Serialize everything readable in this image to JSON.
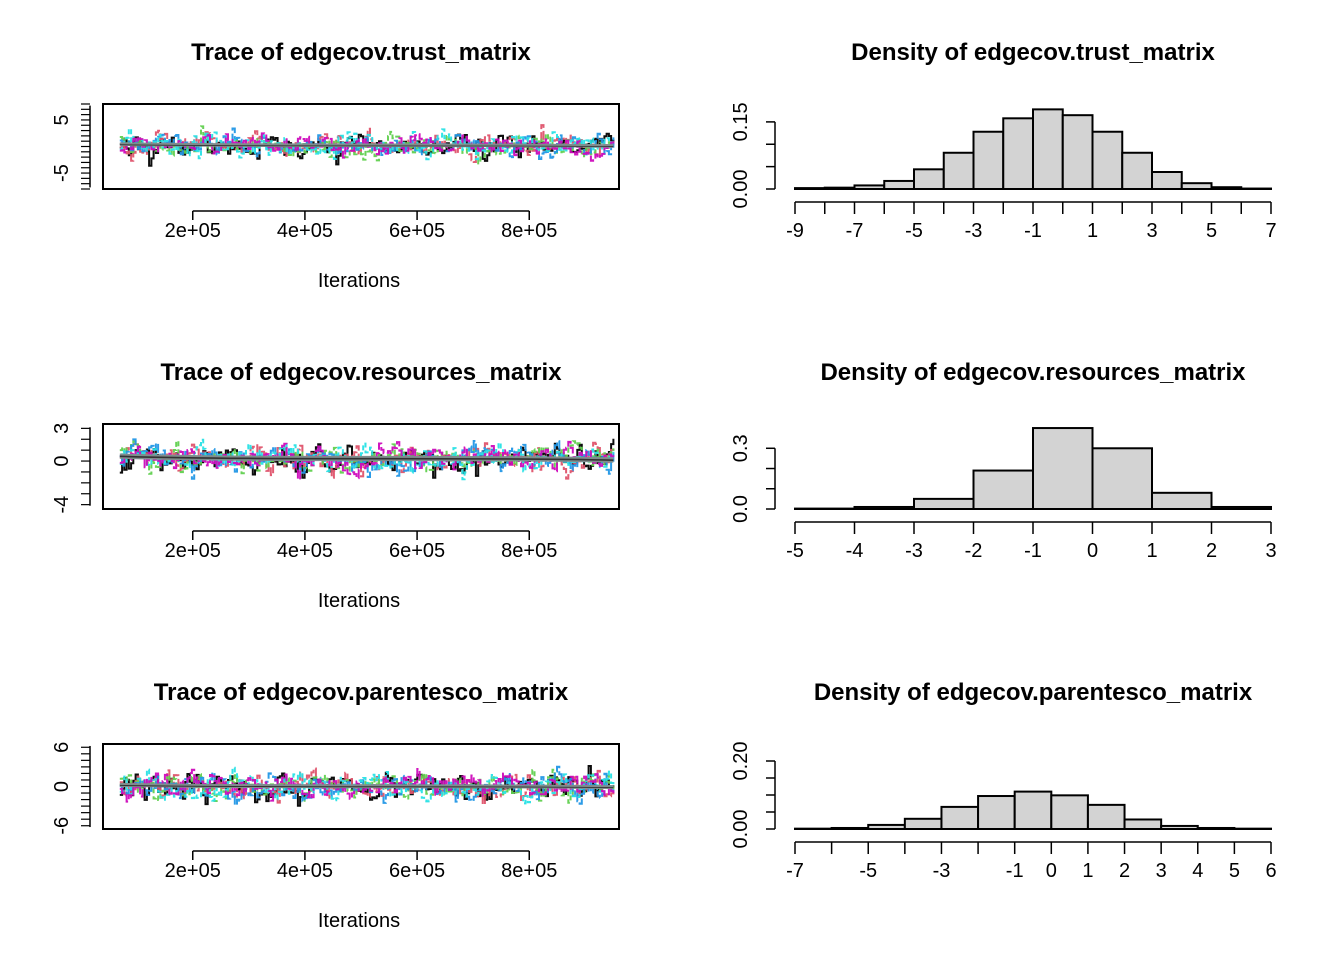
{
  "colors": {
    "series": [
      "#000000",
      "#DF536B",
      "#61D04F",
      "#2297E6",
      "#28E2E5",
      "#CD0BBC"
    ],
    "hist_fill": "#D3D3D3",
    "hist_border": "#000000",
    "smooth_line": "#7F8C8D"
  },
  "chart_data": [
    {
      "type": "line",
      "title": "Trace of edgecov.trust_matrix",
      "xlabel": "Iterations",
      "ylabel": "",
      "xlim": [
        40000,
        960000
      ],
      "ylim": [
        -8,
        8
      ],
      "x_ticks": [
        200000,
        400000,
        600000,
        800000
      ],
      "x_tick_labels": [
        "2e+05",
        "4e+05",
        "6e+05",
        "8e+05"
      ],
      "y_ticks": [
        -5,
        5
      ],
      "y_tick_labels": [
        "-5",
        "5"
      ],
      "x_range": [
        70000,
        950000
      ],
      "series_count": 6,
      "trace_sd": 2.0,
      "trace_center": 0.2
    },
    {
      "type": "bar",
      "title": "Density of edgecov.trust_matrix",
      "xlabel": "",
      "ylabel": "",
      "xlim": [
        -9,
        7
      ],
      "ylim": [
        0,
        0.19
      ],
      "bin_edges": [
        -9,
        -8,
        -7,
        -6,
        -5,
        -4,
        -3,
        -2,
        -1,
        0,
        1,
        2,
        3,
        4,
        5,
        6,
        7
      ],
      "values": [
        0.002,
        0.003,
        0.008,
        0.018,
        0.044,
        0.081,
        0.128,
        0.158,
        0.178,
        0.165,
        0.128,
        0.081,
        0.038,
        0.013,
        0.004,
        0.001
      ],
      "x_tick_labels": [
        "-9",
        "-7",
        "-5",
        "-3",
        "-1",
        "1",
        "3",
        "5",
        "7"
      ],
      "y_ticks": [
        0.0,
        0.05,
        0.1,
        0.15
      ],
      "y_tick_labels": [
        "0.00",
        "0.15"
      ]
    },
    {
      "type": "line",
      "title": "Trace of edgecov.resources_matrix",
      "xlabel": "Iterations",
      "ylabel": "",
      "xlim": [
        40000,
        960000
      ],
      "ylim": [
        -4.4,
        3.4
      ],
      "x_ticks": [
        200000,
        400000,
        600000,
        800000
      ],
      "x_tick_labels": [
        "2e+05",
        "4e+05",
        "6e+05",
        "8e+05"
      ],
      "y_ticks": [
        -4,
        0,
        3
      ],
      "y_tick_labels": [
        "-4",
        "0",
        "3"
      ],
      "x_range": [
        70000,
        950000
      ],
      "series_count": 6,
      "trace_sd": 1.1,
      "trace_center": 0.2
    },
    {
      "type": "bar",
      "title": "Density of edgecov.resources_matrix",
      "xlabel": "",
      "ylabel": "",
      "xlim": [
        -5,
        3
      ],
      "ylim": [
        0,
        0.42
      ],
      "bin_edges": [
        -5,
        -4,
        -3,
        -2,
        -1,
        0,
        1,
        2,
        3
      ],
      "values": [
        0.002,
        0.01,
        0.05,
        0.19,
        0.4,
        0.3,
        0.08,
        0.01
      ],
      "x_tick_labels": [
        "-5",
        "-4",
        "-3",
        "-2",
        "-1",
        "0",
        "1",
        "2",
        "3"
      ],
      "y_ticks": [
        0.0,
        0.1,
        0.2,
        0.3
      ],
      "y_tick_labels": [
        "0.0",
        "0.3"
      ]
    },
    {
      "type": "line",
      "title": "Trace of edgecov.parentesco_matrix",
      "xlabel": "Iterations",
      "ylabel": "",
      "xlim": [
        40000,
        960000
      ],
      "ylim": [
        -6.5,
        6.5
      ],
      "x_ticks": [
        200000,
        400000,
        600000,
        800000
      ],
      "x_tick_labels": [
        "2e+05",
        "4e+05",
        "6e+05",
        "8e+05"
      ],
      "y_ticks": [
        -6,
        0,
        6
      ],
      "y_tick_labels": [
        "-6",
        "0",
        "6"
      ],
      "x_range": [
        70000,
        950000
      ],
      "series_count": 6,
      "trace_sd": 1.9,
      "trace_center": 0.0
    },
    {
      "type": "bar",
      "title": "Density of edgecov.parentesco_matrix",
      "xlabel": "",
      "ylabel": "",
      "xlim": [
        -7,
        6
      ],
      "ylim": [
        0,
        0.25
      ],
      "bin_edges": [
        -7,
        -6,
        -5,
        -4,
        -3,
        -2,
        -1,
        0,
        1,
        2,
        3,
        4,
        5,
        6
      ],
      "values": [
        0.001,
        0.003,
        0.012,
        0.03,
        0.065,
        0.097,
        0.11,
        0.099,
        0.071,
        0.028,
        0.009,
        0.003,
        0.001
      ],
      "x_tick_labels": [
        "-7",
        "-5",
        "-3",
        "-1",
        "0",
        "1",
        "2",
        "3",
        "4",
        "5",
        "6"
      ],
      "x_tick_values": [
        -7,
        -5,
        -3,
        -1,
        0,
        1,
        2,
        3,
        4,
        5,
        6
      ],
      "y_ticks": [
        0.0,
        0.05,
        0.1,
        0.15,
        0.2
      ],
      "y_tick_labels": [
        "0.00",
        "0.20"
      ]
    }
  ]
}
